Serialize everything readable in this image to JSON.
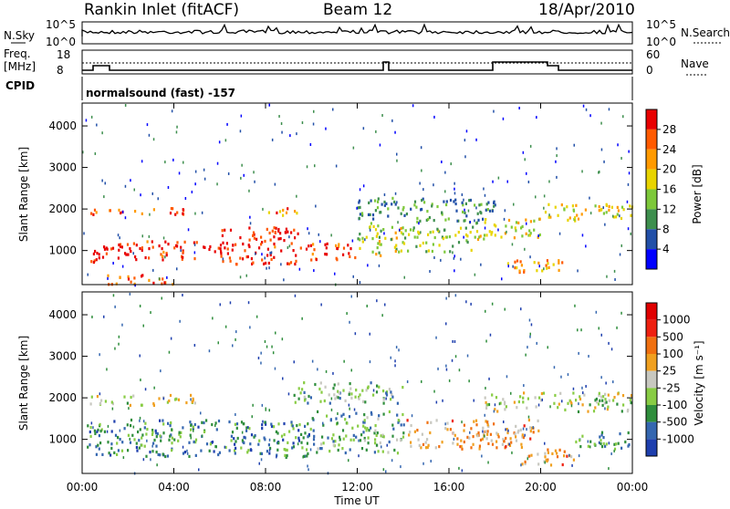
{
  "header": {
    "station": "Rankin Inlet (fitACF)",
    "beam": "Beam 12",
    "date": "18/Apr/2010"
  },
  "top_panels": {
    "nsky_label": "N.Sky",
    "nsky_ticks": [
      "10^5",
      "10^0"
    ],
    "nsearch_label": "N.Search",
    "nsearch_ticks": [
      "10^5",
      "10^0"
    ],
    "freq_label_1": "Freq.",
    "freq_label_2": "[MHz]",
    "freq_ticks": [
      "18",
      "8"
    ],
    "nave_label": "Nave",
    "nave_ticks": [
      "60",
      "0"
    ],
    "cpid_label": "CPID",
    "cpid_text": "normalsound (fast) -157"
  },
  "colors": {
    "power_scale": [
      "#0000ff",
      "#2250a8",
      "#3e8f4e",
      "#7dc83a",
      "#e8d400",
      "#ff9a00",
      "#ff5a00",
      "#e80000"
    ],
    "velocity_scale": [
      "#1e3fae",
      "#3567b0",
      "#2f8e3c",
      "#88cc44",
      "#c8c8c0",
      "#f0a020",
      "#f07010",
      "#ee2010",
      "#e00000"
    ]
  },
  "chart_data": [
    {
      "type": "heatmap",
      "name": "power",
      "ylabel": "Slant Range [km]",
      "xlabel": "Time UT",
      "x_ticks": [
        "00:00",
        "04:00",
        "08:00",
        "12:00",
        "16:00",
        "20:00",
        "00:00"
      ],
      "xlim": [
        0,
        24
      ],
      "y_ticks": [
        1000,
        2000,
        3000,
        4000
      ],
      "ylim": [
        180,
        4550
      ],
      "colorbar_label": "Power [dB]",
      "colorbar_ticks": [
        "28",
        "24",
        "20",
        "16",
        "12",
        "8",
        "4"
      ],
      "regions": [
        {
          "t0": 0.2,
          "t1": 5.0,
          "r0": 1900,
          "r1": 2050,
          "level": 0.78
        },
        {
          "t0": 0.2,
          "t1": 1.5,
          "r0": 700,
          "r1": 1150,
          "level": 0.95
        },
        {
          "t0": 1.5,
          "t1": 6.0,
          "r0": 800,
          "r1": 1250,
          "level": 0.9
        },
        {
          "t0": 6.0,
          "t1": 9.5,
          "r0": 700,
          "r1": 1600,
          "level": 0.92
        },
        {
          "t0": 9.5,
          "t1": 12.0,
          "r0": 800,
          "r1": 1200,
          "level": 0.85
        },
        {
          "t0": 12.0,
          "t1": 14.0,
          "r0": 900,
          "r1": 1700,
          "level": 0.5
        },
        {
          "t0": 14.0,
          "t1": 17.0,
          "r0": 1000,
          "r1": 1600,
          "level": 0.45
        },
        {
          "t0": 17.0,
          "t1": 20.0,
          "r0": 1300,
          "r1": 1800,
          "level": 0.55
        },
        {
          "t0": 18.5,
          "t1": 21.0,
          "r0": 450,
          "r1": 800,
          "level": 0.7
        },
        {
          "t0": 20.0,
          "t1": 24.0,
          "r0": 1750,
          "r1": 2150,
          "level": 0.55
        },
        {
          "t0": 12.0,
          "t1": 18.0,
          "r0": 1700,
          "r1": 2300,
          "level": 0.3
        },
        {
          "t0": 8.0,
          "t1": 9.5,
          "r0": 1850,
          "r1": 2050,
          "level": 0.75
        },
        {
          "t0": 1.0,
          "t1": 4.0,
          "r0": 200,
          "r1": 450,
          "level": 0.8
        }
      ]
    },
    {
      "type": "heatmap",
      "name": "velocity",
      "ylabel": "Slant Range [km]",
      "xlabel": "Time UT",
      "x_ticks": [
        "00:00",
        "04:00",
        "08:00",
        "12:00",
        "16:00",
        "20:00",
        "00:00"
      ],
      "xlim": [
        0,
        24
      ],
      "y_ticks": [
        1000,
        2000,
        3000,
        4000
      ],
      "ylim": [
        180,
        4550
      ],
      "colorbar_label": "Velocity [m s⁻¹]",
      "colorbar_ticks": [
        "1000",
        "500",
        "100",
        "25",
        "-25",
        "-100",
        "-500",
        "-1000"
      ],
      "regions": [
        {
          "t0": 0.2,
          "t1": 5.0,
          "r0": 1850,
          "r1": 2100,
          "level": 0.5
        },
        {
          "t0": 0.2,
          "t1": 10.0,
          "r0": 600,
          "r1": 1500,
          "level": 0.25
        },
        {
          "t0": 10.0,
          "t1": 14.0,
          "r0": 700,
          "r1": 1700,
          "level": 0.3
        },
        {
          "t0": 14.0,
          "t1": 20.0,
          "r0": 800,
          "r1": 1500,
          "level": 0.62
        },
        {
          "t0": 17.5,
          "t1": 24.0,
          "r0": 1700,
          "r1": 2150,
          "level": 0.48
        },
        {
          "t0": 19.0,
          "t1": 21.5,
          "r0": 400,
          "r1": 800,
          "level": 0.62
        },
        {
          "t0": 21.5,
          "t1": 24.0,
          "r0": 800,
          "r1": 1200,
          "level": 0.3
        },
        {
          "t0": 9.0,
          "t1": 14.0,
          "r0": 1900,
          "r1": 2400,
          "level": 0.35
        }
      ]
    }
  ]
}
